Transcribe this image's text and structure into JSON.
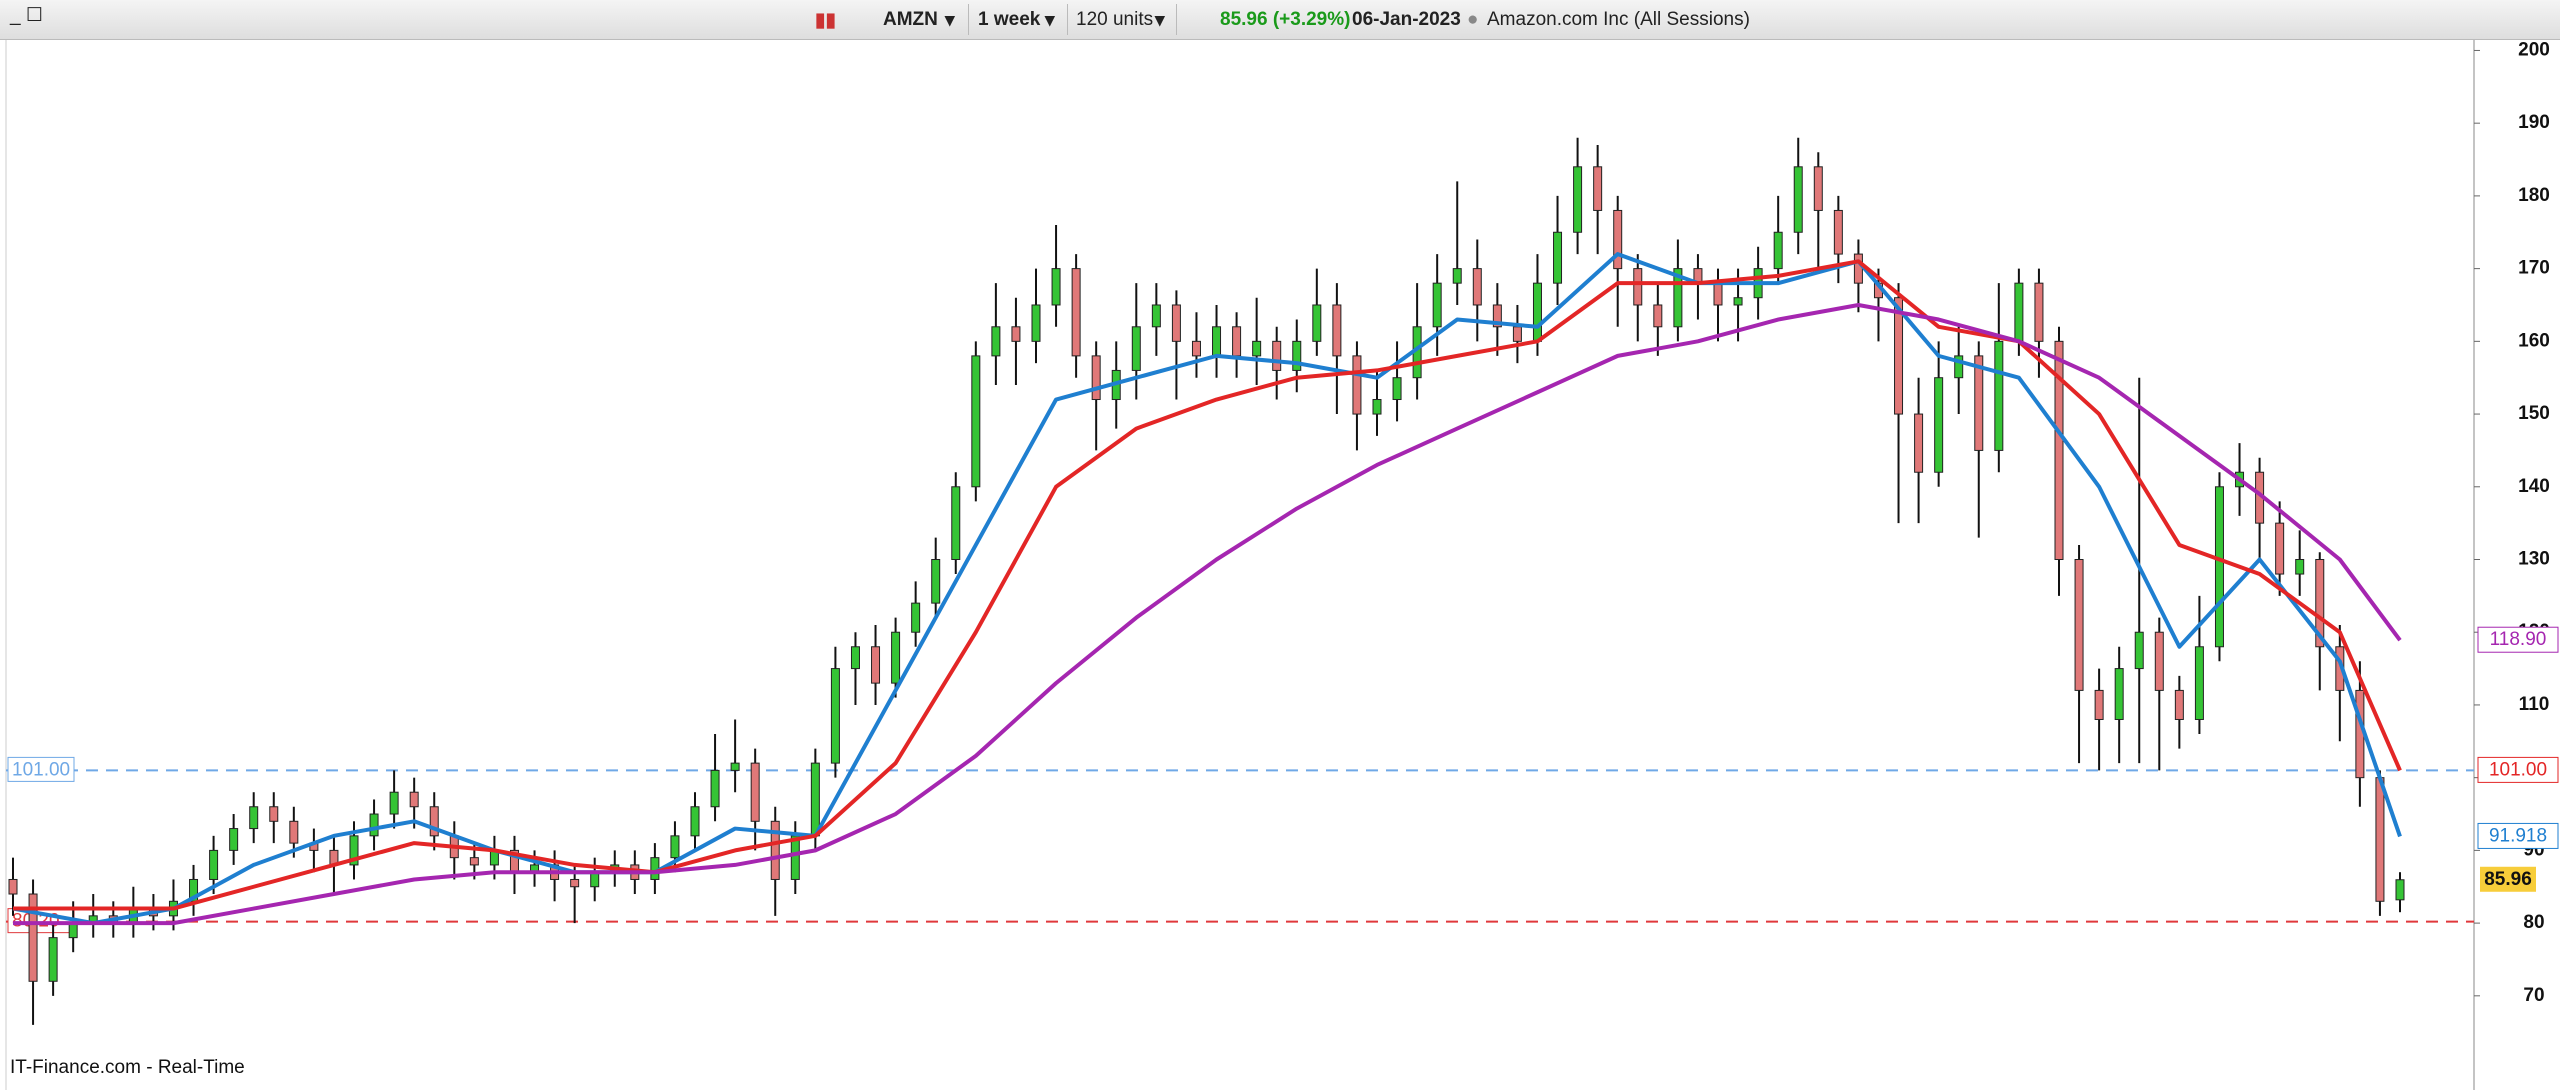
{
  "toolbar": {
    "symbol": "AMZN",
    "period": "1 week",
    "units": "120 units",
    "quote": "85.96 (+3.29%)",
    "date": "06-Jan-2023",
    "name": "Amazon.com Inc (All Sessions)"
  },
  "footer": "IT-Finance.com - Real-Time",
  "chart_data": {
    "type": "candlestick",
    "up_color": "#35c435",
    "down_color": "#e07878",
    "ylim": [
      58.7,
      201.3
    ],
    "yticks": [
      70,
      80,
      90,
      100,
      110,
      120,
      130,
      140,
      150,
      160,
      170,
      180,
      190,
      200
    ],
    "open": [
      86,
      84,
      72,
      78,
      80,
      81,
      80,
      82,
      81,
      83,
      86,
      90,
      93,
      96,
      94,
      91,
      90,
      88,
      92,
      95,
      98,
      96,
      92,
      89,
      88,
      90,
      87,
      88,
      86,
      85,
      87,
      88,
      86,
      89,
      92,
      96,
      101,
      102,
      94,
      86,
      92,
      102,
      115,
      118,
      113,
      120,
      124,
      130,
      140,
      158,
      162,
      160,
      165,
      170,
      158,
      152,
      156,
      162,
      165,
      160,
      158,
      162,
      158,
      160,
      156,
      160,
      165,
      158,
      150,
      152,
      155,
      162,
      168,
      170,
      165,
      162,
      160,
      168,
      175,
      184,
      178,
      170,
      165,
      162,
      170,
      168,
      165,
      166,
      170,
      175,
      184,
      178,
      172,
      168,
      166,
      150,
      142,
      155,
      158,
      145,
      160,
      168,
      160,
      130,
      112,
      108,
      115,
      120,
      112,
      108,
      118,
      140,
      142,
      135,
      128,
      130,
      118,
      112,
      100,
      83.2
    ],
    "high": [
      89,
      86,
      80,
      83,
      84,
      83,
      85,
      84,
      86,
      88,
      92,
      95,
      98,
      98,
      96,
      93,
      92,
      94,
      97,
      101,
      100,
      98,
      94,
      91,
      92,
      92,
      90,
      90,
      88,
      89,
      90,
      90,
      91,
      94,
      98,
      106,
      108,
      104,
      96,
      94,
      104,
      118,
      120,
      121,
      122,
      127,
      133,
      142,
      160,
      168,
      166,
      170,
      176,
      172,
      160,
      160,
      168,
      168,
      167,
      164,
      165,
      164,
      166,
      162,
      163,
      170,
      168,
      160,
      156,
      160,
      168,
      172,
      182,
      174,
      168,
      165,
      172,
      180,
      188,
      187,
      180,
      172,
      168,
      174,
      172,
      170,
      170,
      173,
      180,
      188,
      186,
      180,
      174,
      170,
      168,
      155,
      160,
      162,
      160,
      168,
      170,
      170,
      162,
      132,
      115,
      118,
      155,
      122,
      114,
      125,
      142,
      146,
      144,
      138,
      134,
      131,
      121,
      116,
      101,
      87
    ],
    "low": [
      81,
      66,
      70,
      76,
      78,
      78,
      78,
      79,
      79,
      81,
      84,
      88,
      91,
      91,
      89,
      87,
      84,
      86,
      90,
      93,
      93,
      90,
      86,
      86,
      86,
      84,
      85,
      83,
      80,
      83,
      85,
      84,
      84,
      87,
      90,
      94,
      98,
      90,
      81,
      84,
      90,
      100,
      110,
      110,
      111,
      118,
      122,
      128,
      138,
      154,
      154,
      157,
      162,
      155,
      145,
      148,
      152,
      158,
      152,
      155,
      155,
      155,
      154,
      152,
      153,
      158,
      150,
      145,
      147,
      149,
      152,
      158,
      165,
      160,
      158,
      157,
      158,
      165,
      172,
      172,
      162,
      160,
      158,
      160,
      163,
      160,
      160,
      163,
      168,
      172,
      170,
      168,
      164,
      160,
      135,
      135,
      140,
      150,
      133,
      142,
      158,
      155,
      125,
      102,
      101,
      102,
      102,
      101,
      104,
      106,
      116,
      136,
      130,
      125,
      125,
      112,
      105,
      96,
      81,
      81.5
    ],
    "close": [
      84,
      72,
      78,
      80,
      81,
      80,
      82,
      81,
      83,
      86,
      90,
      93,
      96,
      94,
      91,
      90,
      88,
      92,
      95,
      98,
      96,
      92,
      89,
      88,
      90,
      87,
      88,
      86,
      85,
      87,
      88,
      86,
      89,
      92,
      96,
      101,
      102,
      94,
      86,
      92,
      102,
      115,
      118,
      113,
      120,
      124,
      130,
      140,
      158,
      162,
      160,
      165,
      170,
      158,
      152,
      156,
      162,
      165,
      160,
      158,
      162,
      158,
      160,
      156,
      160,
      165,
      158,
      150,
      152,
      155,
      162,
      168,
      170,
      165,
      162,
      160,
      168,
      175,
      184,
      178,
      170,
      165,
      162,
      170,
      168,
      165,
      166,
      170,
      175,
      184,
      178,
      172,
      168,
      166,
      150,
      142,
      155,
      158,
      145,
      160,
      168,
      160,
      130,
      112,
      108,
      115,
      120,
      112,
      108,
      118,
      140,
      142,
      135,
      128,
      130,
      118,
      112,
      100,
      83,
      85.96
    ],
    "series": [
      {
        "color": "#1f7fd0",
        "x": [
          0,
          4,
          8,
          12,
          16,
          20,
          24,
          28,
          32,
          36,
          40,
          44,
          48,
          52,
          56,
          60,
          64,
          68,
          72,
          76,
          80,
          84,
          88,
          92,
          96,
          100,
          104,
          108,
          112,
          116,
          119
        ],
        "values": [
          82,
          80,
          82,
          88,
          92,
          94,
          90,
          87,
          87,
          93,
          92,
          112,
          132,
          152,
          155,
          158,
          157,
          155,
          163,
          162,
          172,
          168,
          168,
          171,
          158,
          155,
          140,
          118,
          130,
          116,
          91.918
        ],
        "value_labels": [
          null,
          null,
          null,
          null,
          null,
          null,
          null,
          null,
          null,
          null,
          null,
          null,
          null,
          null,
          null,
          null,
          null,
          null,
          null,
          null,
          null,
          null,
          null,
          null,
          null,
          null,
          null,
          null,
          null,
          null,
          "91.918"
        ]
      },
      {
        "color": "#e32626",
        "x": [
          0,
          4,
          8,
          12,
          16,
          20,
          24,
          28,
          32,
          36,
          40,
          44,
          48,
          52,
          56,
          60,
          64,
          68,
          72,
          76,
          80,
          84,
          88,
          92,
          96,
          100,
          104,
          108,
          112,
          116,
          119
        ],
        "values": [
          82,
          82,
          82,
          85,
          88,
          91,
          90,
          88,
          87,
          90,
          92,
          102,
          120,
          140,
          148,
          152,
          155,
          156,
          158,
          160,
          168,
          168,
          169,
          171,
          162,
          160,
          150,
          132,
          128,
          120,
          101
        ],
        "value_labels": [
          null,
          null,
          null,
          null,
          null,
          null,
          null,
          null,
          null,
          null,
          null,
          null,
          null,
          null,
          null,
          null,
          null,
          null,
          null,
          null,
          null,
          null,
          null,
          null,
          null,
          null,
          null,
          null,
          null,
          null,
          "101.00"
        ]
      },
      {
        "color": "#a526b0",
        "x": [
          0,
          4,
          8,
          12,
          16,
          20,
          24,
          28,
          32,
          36,
          40,
          44,
          48,
          52,
          56,
          60,
          64,
          68,
          72,
          76,
          80,
          84,
          88,
          92,
          96,
          100,
          104,
          108,
          112,
          116,
          119
        ],
        "values": [
          80,
          80,
          80,
          82,
          84,
          86,
          87,
          87,
          87,
          88,
          90,
          95,
          103,
          113,
          122,
          130,
          137,
          143,
          148,
          153,
          158,
          160,
          163,
          165,
          163,
          160,
          155,
          147,
          139,
          130,
          118.9
        ],
        "value_labels": [
          null,
          null,
          null,
          null,
          null,
          null,
          null,
          null,
          null,
          null,
          null,
          null,
          null,
          null,
          null,
          null,
          null,
          null,
          null,
          null,
          null,
          null,
          null,
          null,
          null,
          null,
          null,
          null,
          null,
          null,
          "118.90"
        ]
      }
    ],
    "levels": [
      {
        "value": 101,
        "label": "101.00",
        "color": "#6fa8e6"
      },
      {
        "value": 80.2,
        "label": "80.20",
        "color": "#e0383b"
      }
    ]
  }
}
